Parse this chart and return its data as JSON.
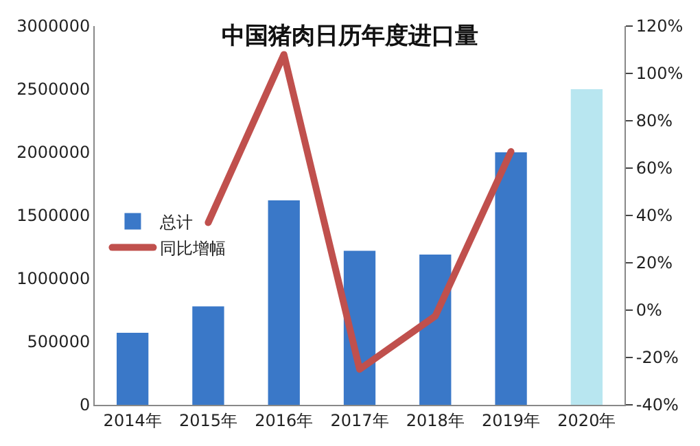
{
  "chart_data": {
    "type": "bar",
    "title": "中国猪肉日历年度进口量",
    "categories": [
      "2014年",
      "2015年",
      "2016年",
      "2017年",
      "2018年",
      "2019年",
      "2020年"
    ],
    "series": [
      {
        "name": "总计",
        "colors": [
          "#3a78c8",
          "#3a78c8",
          "#3a78c8",
          "#3a78c8",
          "#3a78c8",
          "#3a78c8",
          "#b8e6f0"
        ],
        "color": "#3a78c8",
        "values": [
          570000,
          780000,
          1620000,
          1220000,
          1190000,
          2000000,
          2500000
        ]
      },
      {
        "name": "同比增幅",
        "type": "line",
        "axis": "y2",
        "color": "#c0504d",
        "values": [
          null,
          37,
          108,
          -25,
          -2.5,
          67,
          null
        ]
      }
    ],
    "ylim": [
      0,
      3000000
    ],
    "yticks": [
      0,
      500000,
      1000000,
      1500000,
      2000000,
      2500000,
      3000000
    ],
    "y2lim": [
      -40,
      120
    ],
    "y2ticks": [
      {
        "value": -40,
        "label": "-40%"
      },
      {
        "value": -20,
        "label": "-20%"
      },
      {
        "value": 0,
        "label": "0%"
      },
      {
        "value": 20,
        "label": "20%"
      },
      {
        "value": 40,
        "label": "40%"
      },
      {
        "value": 60,
        "label": "60%"
      },
      {
        "value": 80,
        "label": "80%"
      },
      {
        "value": 100,
        "label": "100%"
      },
      {
        "value": 120,
        "label": "120%"
      }
    ],
    "legend": "left",
    "marker": "none",
    "line_style": "solid"
  }
}
